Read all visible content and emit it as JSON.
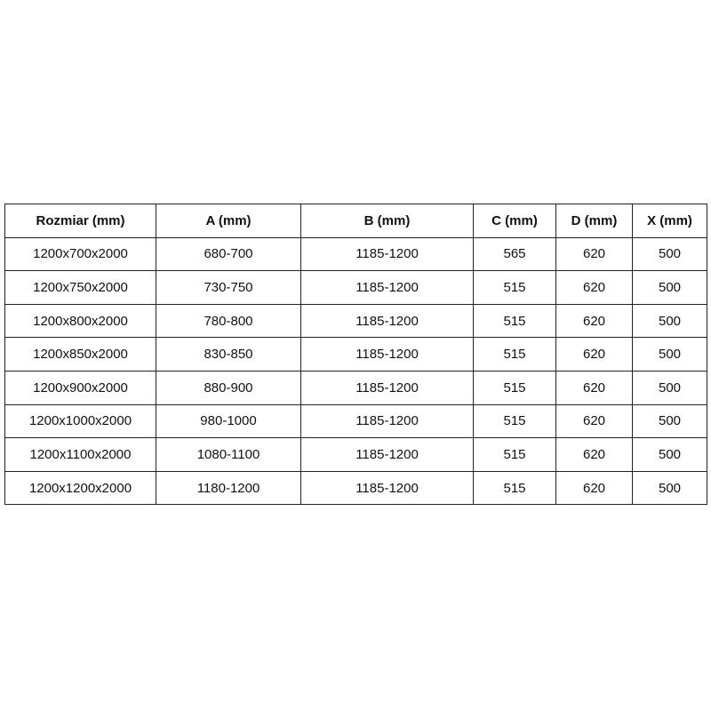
{
  "table": {
    "headers": [
      "Rozmiar (mm)",
      "A (mm)",
      "B (mm)",
      "C (mm)",
      "D (mm)",
      "X (mm)"
    ],
    "rows": [
      [
        "1200x700x2000",
        "680-700",
        "1185-1200",
        "565",
        "620",
        "500"
      ],
      [
        "1200x750x2000",
        "730-750",
        "1185-1200",
        "515",
        "620",
        "500"
      ],
      [
        "1200x800x2000",
        "780-800",
        "1185-1200",
        "515",
        "620",
        "500"
      ],
      [
        "1200x850x2000",
        "830-850",
        "1185-1200",
        "515",
        "620",
        "500"
      ],
      [
        "1200x900x2000",
        "880-900",
        "1185-1200",
        "515",
        "620",
        "500"
      ],
      [
        "1200x1000x2000",
        "980-1000",
        "1185-1200",
        "515",
        "620",
        "500"
      ],
      [
        "1200x1100x2000",
        "1080-1100",
        "1185-1200",
        "515",
        "620",
        "500"
      ],
      [
        "1200x1200x2000",
        "1180-1200",
        "1185-1200",
        "515",
        "620",
        "500"
      ]
    ]
  }
}
